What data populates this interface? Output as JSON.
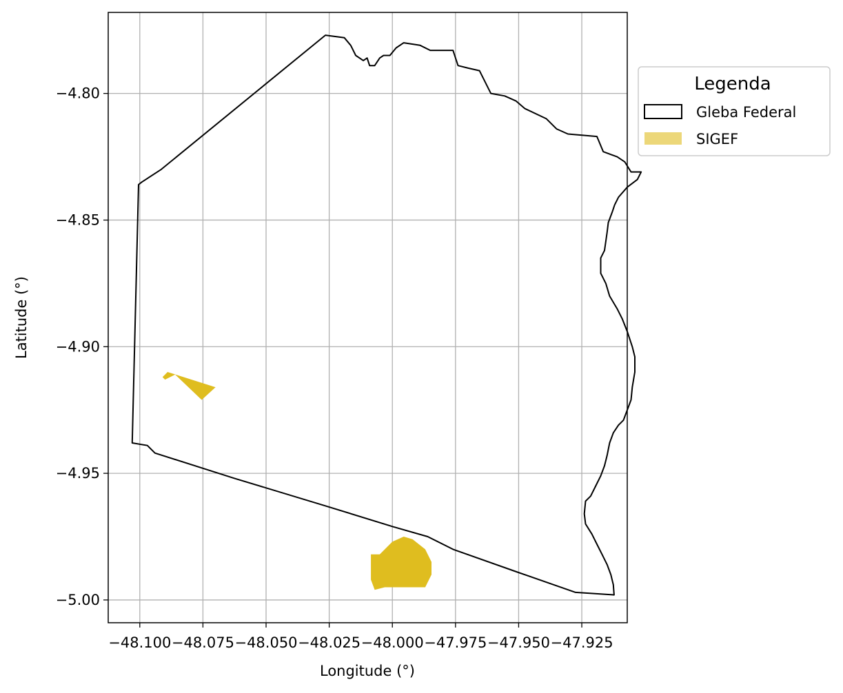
{
  "chart_data": {
    "type": "map",
    "xlabel": "Longitude (°)",
    "ylabel": "Latitude (°)",
    "xlim": [
      -48.1125,
      -47.907
    ],
    "ylim": [
      -5.009,
      -4.768
    ],
    "x_ticks": [
      -48.1,
      -48.075,
      -48.05,
      -48.025,
      -48.0,
      -47.975,
      -47.95,
      -47.925
    ],
    "x_tick_labels": [
      "−48.100",
      "−48.075",
      "−48.050",
      "−48.025",
      "−48.000",
      "−47.975",
      "−47.950",
      "−47.925"
    ],
    "y_ticks": [
      -4.8,
      -4.85,
      -4.9,
      -4.95,
      -5.0
    ],
    "y_tick_labels": [
      "−4.80",
      "−4.85",
      "−4.90",
      "−4.95",
      "−5.00"
    ],
    "grid": true,
    "legend": {
      "title": "Legenda",
      "placement": "outside upper right",
      "entries": [
        {
          "label": "Gleba Federal",
          "style": "outline",
          "edge_color": "#000000",
          "fill_color": "none"
        },
        {
          "label": "SIGEF",
          "style": "fill",
          "edge_color": "none",
          "fill_color": "#DFBD1F",
          "alpha": 0.6
        }
      ]
    },
    "layers": [
      {
        "name": "Gleba Federal",
        "type": "polygon",
        "edge_color": "#000000",
        "fill_color": "none",
        "coordinates": [
          [
            -48.1005,
            -4.836
          ],
          [
            -48.0992,
            -4.835
          ],
          [
            -48.0915,
            -4.83
          ],
          [
            -48.0265,
            -4.777
          ],
          [
            -48.019,
            -4.778
          ],
          [
            -48.0165,
            -4.781
          ],
          [
            -48.0145,
            -4.785
          ],
          [
            -48.0115,
            -4.787
          ],
          [
            -48.01,
            -4.786
          ],
          [
            -48.009,
            -4.789
          ],
          [
            -48.007,
            -4.789
          ],
          [
            -48.005,
            -4.786
          ],
          [
            -48.0035,
            -4.785
          ],
          [
            -48.001,
            -4.785
          ],
          [
            -47.9985,
            -4.782
          ],
          [
            -47.9955,
            -4.78
          ],
          [
            -47.989,
            -4.781
          ],
          [
            -47.985,
            -4.783
          ],
          [
            -47.976,
            -4.783
          ],
          [
            -47.974,
            -4.789
          ],
          [
            -47.97,
            -4.79
          ],
          [
            -47.9655,
            -4.791
          ],
          [
            -47.9625,
            -4.797
          ],
          [
            -47.961,
            -4.8
          ],
          [
            -47.9555,
            -4.801
          ],
          [
            -47.951,
            -4.803
          ],
          [
            -47.9475,
            -4.806
          ],
          [
            -47.939,
            -4.81
          ],
          [
            -47.935,
            -4.814
          ],
          [
            -47.9305,
            -4.816
          ],
          [
            -47.919,
            -4.817
          ],
          [
            -47.9165,
            -4.823
          ],
          [
            -47.911,
            -4.825
          ],
          [
            -47.908,
            -4.827
          ],
          [
            -47.9055,
            -4.831
          ],
          [
            -47.9015,
            -4.831
          ],
          [
            -47.903,
            -4.834
          ],
          [
            -47.907,
            -4.837
          ],
          [
            -47.9105,
            -4.841
          ],
          [
            -47.912,
            -4.844
          ],
          [
            -47.913,
            -4.847
          ],
          [
            -47.9145,
            -4.851
          ],
          [
            -47.915,
            -4.855
          ],
          [
            -47.916,
            -4.862
          ],
          [
            -47.9175,
            -4.865
          ],
          [
            -47.9175,
            -4.871
          ],
          [
            -47.9155,
            -4.875
          ],
          [
            -47.914,
            -4.88
          ],
          [
            -47.911,
            -4.885
          ],
          [
            -47.909,
            -4.889
          ],
          [
            -47.907,
            -4.894
          ],
          [
            -47.905,
            -4.9
          ],
          [
            -47.904,
            -4.904
          ],
          [
            -47.904,
            -4.91
          ],
          [
            -47.905,
            -4.916
          ],
          [
            -47.9055,
            -4.921
          ],
          [
            -47.907,
            -4.925
          ],
          [
            -47.9085,
            -4.929
          ],
          [
            -47.9105,
            -4.931
          ],
          [
            -47.9125,
            -4.934
          ],
          [
            -47.914,
            -4.938
          ],
          [
            -47.915,
            -4.943
          ],
          [
            -47.916,
            -4.947
          ],
          [
            -47.9175,
            -4.951
          ],
          [
            -47.9195,
            -4.955
          ],
          [
            -47.9215,
            -4.959
          ],
          [
            -47.9235,
            -4.961
          ],
          [
            -47.924,
            -4.966
          ],
          [
            -47.9235,
            -4.97
          ],
          [
            -47.921,
            -4.974
          ],
          [
            -47.919,
            -4.978
          ],
          [
            -47.917,
            -4.982
          ],
          [
            -47.915,
            -4.986
          ],
          [
            -47.9135,
            -4.99
          ],
          [
            -47.9125,
            -4.994
          ],
          [
            -47.9122,
            -4.998
          ],
          [
            -47.9275,
            -4.997
          ],
          [
            -47.9505,
            -4.989
          ],
          [
            -47.976,
            -4.98
          ],
          [
            -47.986,
            -4.975
          ],
          [
            -48.0,
            -4.971
          ],
          [
            -48.026,
            -4.963
          ],
          [
            -48.0625,
            -4.952
          ],
          [
            -48.094,
            -4.942
          ],
          [
            -48.097,
            -4.939
          ],
          [
            -48.103,
            -4.938
          ],
          [
            -48.1005,
            -4.836
          ]
        ]
      },
      {
        "name": "SIGEF",
        "type": "polygon",
        "edge_color": "none",
        "fill_color": "#DFBD1F",
        "features": [
          [
            [
              -48.091,
              -4.912
            ],
            [
              -48.089,
              -4.91
            ],
            [
              -48.07,
              -4.916
            ],
            [
              -48.0755,
              -4.921
            ],
            [
              -48.086,
              -4.911
            ],
            [
              -48.09,
              -4.913
            ]
          ],
          [
            [
              -48.0085,
              -4.982
            ],
            [
              -48.005,
              -4.982
            ],
            [
              -48.0,
              -4.977
            ],
            [
              -47.9955,
              -4.975
            ],
            [
              -47.992,
              -4.976
            ],
            [
              -47.987,
              -4.98
            ],
            [
              -47.9845,
              -4.985
            ],
            [
              -47.9845,
              -4.99
            ],
            [
              -47.987,
              -4.995
            ],
            [
              -47.996,
              -4.995
            ],
            [
              -48.003,
              -4.995
            ],
            [
              -48.007,
              -4.996
            ],
            [
              -48.0085,
              -4.992
            ],
            [
              -48.0085,
              -4.987
            ]
          ]
        ]
      }
    ]
  }
}
